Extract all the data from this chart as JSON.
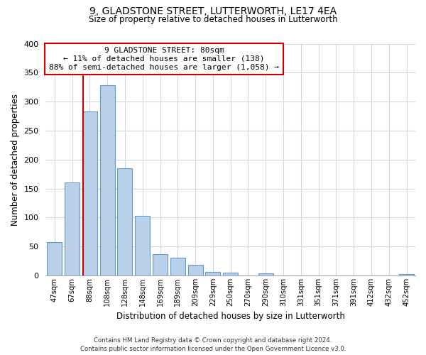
{
  "title": "9, GLADSTONE STREET, LUTTERWORTH, LE17 4EA",
  "subtitle": "Size of property relative to detached houses in Lutterworth",
  "xlabel": "Distribution of detached houses by size in Lutterworth",
  "ylabel": "Number of detached properties",
  "bin_labels": [
    "47sqm",
    "67sqm",
    "88sqm",
    "108sqm",
    "128sqm",
    "148sqm",
    "169sqm",
    "189sqm",
    "209sqm",
    "229sqm",
    "250sqm",
    "270sqm",
    "290sqm",
    "310sqm",
    "331sqm",
    "351sqm",
    "371sqm",
    "391sqm",
    "412sqm",
    "432sqm",
    "452sqm"
  ],
  "bar_values": [
    57,
    160,
    283,
    328,
    185,
    103,
    37,
    31,
    18,
    6,
    5,
    0,
    4,
    0,
    0,
    0,
    0,
    0,
    0,
    0,
    2
  ],
  "bar_color": "#b8d0e8",
  "bar_edge_color": "#6699cc",
  "property_line_label": "9 GLADSTONE STREET: 80sqm",
  "annotation_line1": "← 11% of detached houses are smaller (138)",
  "annotation_line2": "88% of semi-detached houses are larger (1,058) →",
  "vline_color": "#cc0000",
  "vline_x": 1.62,
  "ylim": [
    0,
    400
  ],
  "yticks": [
    0,
    50,
    100,
    150,
    200,
    250,
    300,
    350,
    400
  ],
  "footnote1": "Contains HM Land Registry data © Crown copyright and database right 2024.",
  "footnote2": "Contains public sector information licensed under the Open Government Licence v3.0.",
  "box_color": "#cc0000",
  "background_color": "#ffffff",
  "grid_color": "#d0d8e0"
}
